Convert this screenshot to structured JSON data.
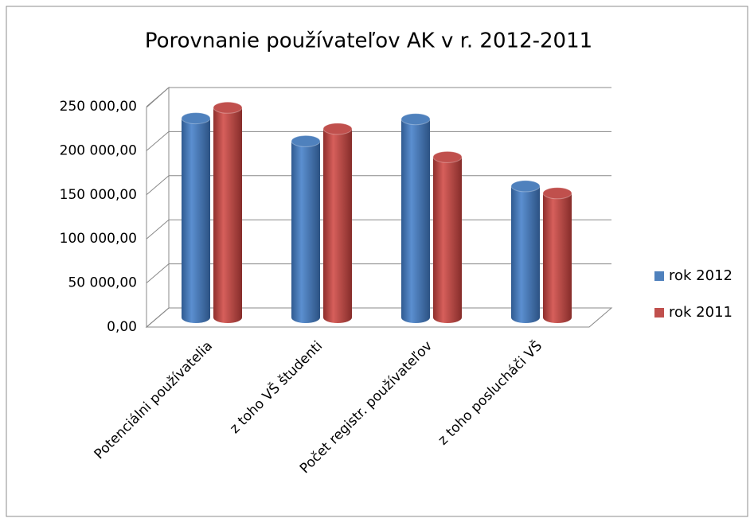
{
  "chart_data": {
    "type": "bar3d",
    "title": "Porovnanie používateľov AK v r. 2012-2011",
    "categories": [
      "Potenciálni používatelia",
      "z toho VŠ študenti",
      "Počet registr. používateľov",
      "z toho poslucháči VŠ"
    ],
    "series": [
      {
        "name": "rok 2012",
        "color": "#4f81bd",
        "values": [
          226000,
          200000,
          225000,
          149000
        ]
      },
      {
        "name": "rok 2011",
        "color": "#c0504d",
        "values": [
          238000,
          214000,
          182000,
          141000
        ]
      }
    ],
    "ylim": [
      0,
      250000
    ],
    "yticks": [
      {
        "value": 0,
        "label": "0,00"
      },
      {
        "value": 50000,
        "label": "50 000,00"
      },
      {
        "value": 100000,
        "label": "100 000,00"
      },
      {
        "value": 150000,
        "label": "150 000,00"
      },
      {
        "value": 200000,
        "label": "200 000,00"
      },
      {
        "value": 250000,
        "label": "250 000,00"
      }
    ],
    "grid": true,
    "legend": "right"
  }
}
